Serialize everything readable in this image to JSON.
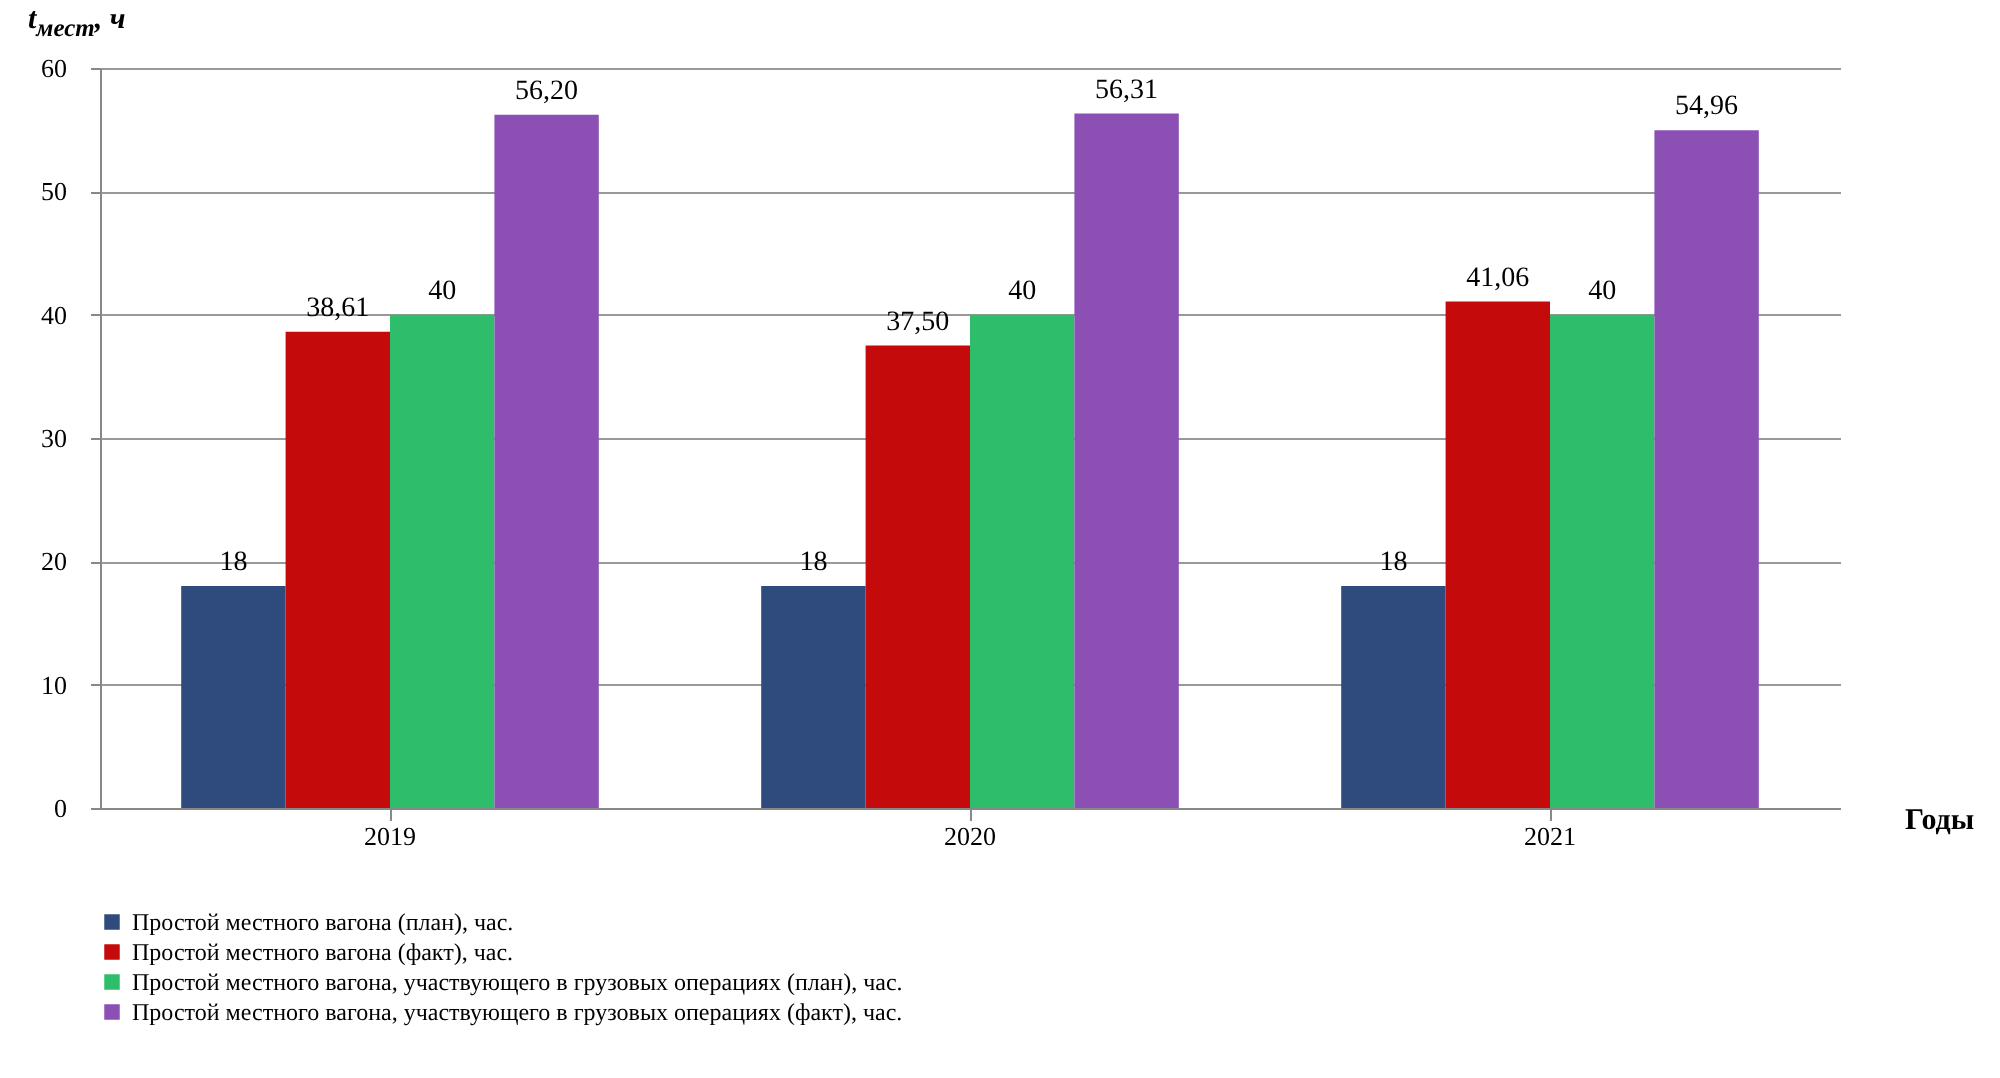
{
  "chart_data": {
    "type": "bar",
    "ylabel": "t$_{мест}$, ч",
    "xlabel": "Годы",
    "categories": [
      "2019",
      "2020",
      "2021"
    ],
    "series": [
      {
        "name": "Простой местного вагона (план), час.",
        "color": "#2f4a7c",
        "values": [
          18,
          18,
          18
        ],
        "value_labels": [
          "18",
          "18",
          "18"
        ]
      },
      {
        "name": "Простой местного вагона (факт), час.",
        "color": "#c40a0a",
        "values": [
          38.61,
          37.5,
          41.06
        ],
        "value_labels": [
          "38,61",
          "37,50",
          "41,06"
        ]
      },
      {
        "name": "Простой местного вагона, участвующего в грузовых операциях (план), час.",
        "color": "#2ebd6a",
        "values": [
          40,
          40,
          40
        ],
        "value_labels": [
          "40",
          "40",
          "40"
        ]
      },
      {
        "name": "Простой местного вагона, участвующего в грузовых операциях (факт), час.",
        "color": "#8c50b4",
        "values": [
          56.2,
          56.31,
          54.96
        ],
        "value_labels": [
          "56,20",
          "56,31",
          "54,96"
        ]
      }
    ],
    "ylim": [
      0,
      60
    ],
    "yticks": [
      0,
      10,
      20,
      30,
      40,
      50,
      60
    ],
    "grid": "y",
    "legend": "bottom"
  }
}
